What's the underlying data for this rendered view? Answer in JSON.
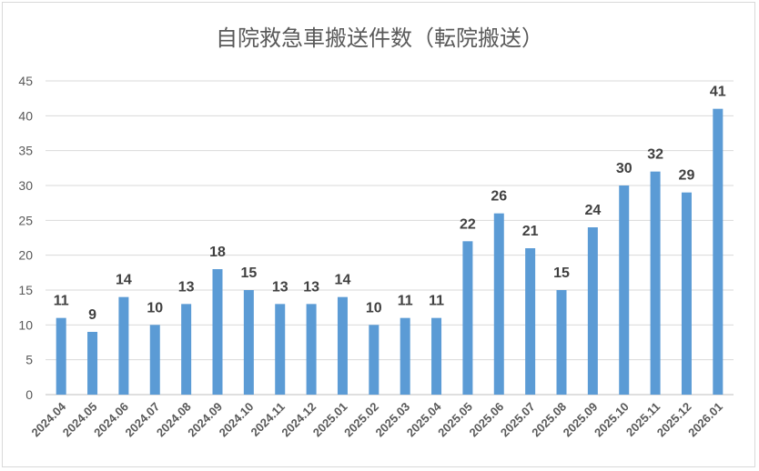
{
  "chart_data": {
    "type": "bar",
    "title": "自院救急車搬送件数（転院搬送）",
    "xlabel": "",
    "ylabel": "",
    "ylim": [
      0,
      45
    ],
    "yticks": [
      "0",
      "5",
      "10",
      "15",
      "20",
      "25",
      "30",
      "35",
      "40",
      "45"
    ],
    "grid": true,
    "legend": "none",
    "bar_color": "#5b9bd5",
    "categories": [
      "2024.04",
      "2024.05",
      "2024.06",
      "2024.07",
      "2024.08",
      "2024.09",
      "2024.10",
      "2024.11",
      "2024.12",
      "2025.01",
      "2025.02",
      "2025.03",
      "2025.04",
      "2025.05",
      "2025.06",
      "2025.07",
      "2025.08",
      "2025.09",
      "2025.10",
      "2025.11",
      "2025.12",
      "2026.01"
    ],
    "values": [
      11,
      9,
      14,
      10,
      13,
      18,
      15,
      13,
      13,
      14,
      10,
      11,
      11,
      22,
      26,
      21,
      15,
      24,
      30,
      32,
      29,
      41
    ]
  }
}
